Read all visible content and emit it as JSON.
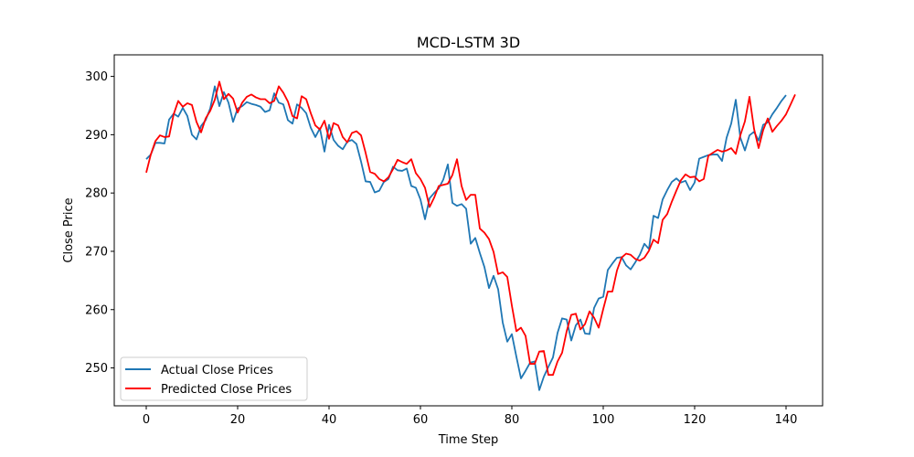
{
  "chart_data": {
    "type": "line",
    "title": "MCD-LSTM 3D",
    "xlabel": "Time Step",
    "ylabel": "Close Price",
    "xlim": [
      -7,
      148
    ],
    "ylim": [
      243.5,
      303.7
    ],
    "xticks": [
      0,
      20,
      40,
      60,
      80,
      100,
      120,
      140
    ],
    "yticks": [
      250,
      260,
      270,
      280,
      290,
      300
    ],
    "grid": false,
    "legend_position": "lower-left",
    "series": [
      {
        "name": "Actual Close Prices",
        "color": "#1f77b4",
        "values": [
          285.8,
          286.6,
          288.6,
          288.6,
          288.5,
          292.6,
          293.6,
          293.1,
          294.6,
          293.2,
          290.0,
          289.2,
          291.5,
          292.5,
          294.5,
          298.3,
          294.9,
          297.3,
          295.5,
          292.2,
          294.5,
          294.9,
          295.6,
          295.3,
          295.1,
          294.8,
          293.9,
          294.2,
          297.1,
          295.5,
          295.2,
          292.5,
          291.9,
          295.2,
          294.6,
          293.7,
          291.2,
          289.6,
          291.1,
          287.1,
          291.7,
          289.1,
          288.1,
          287.5,
          288.8,
          289.1,
          288.4,
          285.4,
          282.0,
          281.9,
          280.1,
          280.4,
          281.9,
          282.4,
          284.5,
          283.9,
          283.8,
          284.2,
          281.2,
          280.9,
          278.9,
          275.5,
          279.1,
          280.0,
          280.8,
          282.3,
          284.9,
          278.3,
          277.8,
          278.1,
          277.3,
          271.3,
          272.3,
          269.7,
          267.3,
          263.7,
          265.8,
          263.5,
          257.8,
          254.5,
          255.8,
          251.9,
          248.2,
          249.5,
          250.9,
          251.1,
          246.2,
          248.5,
          250.2,
          251.8,
          256.0,
          258.5,
          258.3,
          254.7,
          257.3,
          258.3,
          255.9,
          255.8,
          260.3,
          261.9,
          262.2,
          266.8,
          267.9,
          268.9,
          269.0,
          267.6,
          266.9,
          268.1,
          269.4,
          271.3,
          270.4,
          276.1,
          275.7,
          278.9,
          280.5,
          281.9,
          282.5,
          281.8,
          282.1,
          280.5,
          281.8,
          285.9,
          286.2,
          286.5,
          286.6,
          286.6,
          285.5,
          289.5,
          291.9,
          296.0,
          289.5,
          287.3,
          289.9,
          290.5,
          289.0,
          291.7,
          292.1,
          293.5,
          294.6,
          295.8,
          296.8
        ]
      },
      {
        "name": "Predicted Close Prices",
        "color": "#ff0000",
        "values": [
          283.5,
          286.6,
          288.9,
          289.9,
          289.6,
          289.7,
          293.5,
          295.8,
          294.8,
          295.4,
          295.1,
          292.2,
          290.4,
          292.8,
          294.1,
          296.0,
          299.1,
          296.1,
          297.0,
          296.2,
          293.8,
          295.5,
          296.5,
          296.9,
          296.4,
          296.1,
          296.1,
          295.4,
          295.8,
          298.3,
          297.2,
          295.7,
          293.2,
          292.8,
          296.6,
          296.1,
          293.7,
          291.6,
          290.9,
          292.4,
          289.3,
          292.0,
          291.6,
          289.6,
          288.7,
          290.3,
          290.6,
          289.9,
          286.9,
          283.6,
          283.3,
          282.4,
          282.0,
          282.7,
          284.1,
          285.7,
          285.3,
          285.0,
          285.8,
          283.4,
          282.4,
          280.9,
          277.6,
          279.2,
          281.2,
          281.4,
          281.6,
          283.1,
          285.8,
          281.2,
          278.8,
          279.7,
          279.7,
          273.9,
          273.2,
          272.1,
          269.9,
          266.1,
          266.4,
          265.6,
          260.7,
          256.3,
          256.9,
          255.5,
          250.7,
          250.7,
          252.8,
          252.9,
          248.8,
          248.8,
          251.1,
          252.6,
          256.3,
          259.1,
          259.3,
          256.6,
          257.5,
          259.7,
          258.6,
          256.9,
          260.1,
          263.1,
          263.1,
          266.7,
          268.9,
          269.6,
          269.4,
          268.7,
          268.4,
          268.9,
          270.1,
          272.0,
          271.4,
          275.4,
          276.4,
          278.5,
          280.4,
          282.2,
          283.2,
          282.7,
          282.8,
          282.0,
          282.4,
          286.4,
          286.9,
          287.4,
          287.1,
          287.3,
          287.7,
          286.7,
          289.9,
          292.3,
          296.5,
          291.0,
          287.7,
          290.8,
          292.8,
          290.5,
          291.5,
          292.4,
          293.5,
          295.2,
          296.9
        ]
      }
    ]
  }
}
